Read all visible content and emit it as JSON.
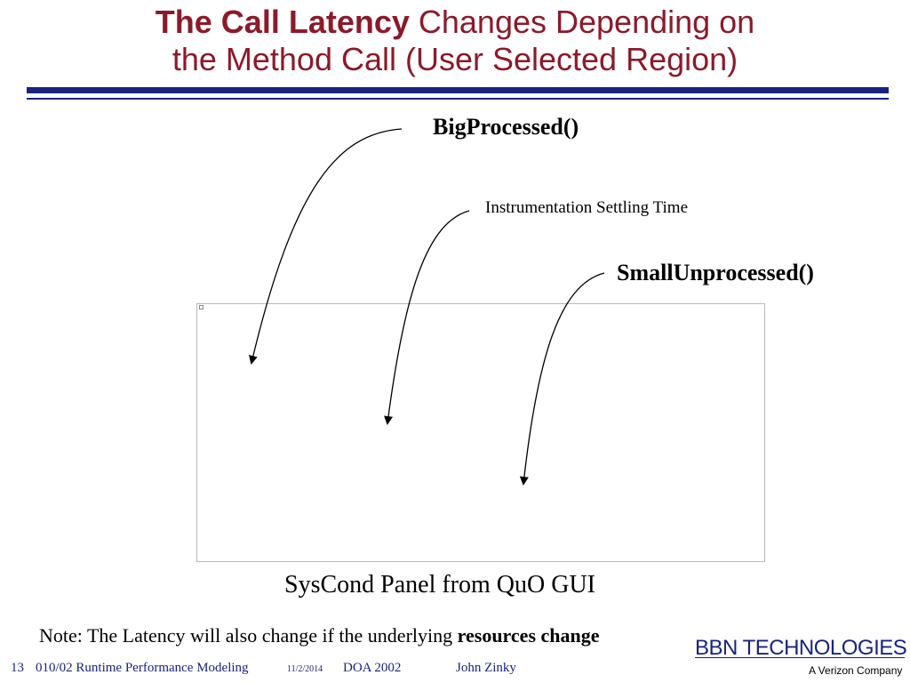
{
  "title": {
    "bold_part": "The Call Latency",
    "line1_rest": " Changes Depending on",
    "line2": "the Method Call (User Selected Region)"
  },
  "annotations": {
    "big_processed": "BigProcessed()",
    "settling": "Instrumentation Settling Time",
    "small_unprocessed": "SmallUnprocessed()"
  },
  "panel": {
    "caption": "SysCond Panel from QuO GUI"
  },
  "note": {
    "prefix": "Note: The Latency will also change if the underlying ",
    "bold": "resources change"
  },
  "footer": {
    "slide_number": "13",
    "course": "010/02  Runtime Performance Modeling",
    "date": "11/2/2014",
    "event": "DOA 2002",
    "author": "John Zinky"
  },
  "logo": {
    "main": "BBN TECHNOLOGIES",
    "sub": "A Verizon Company"
  },
  "colors": {
    "title": "#8b1a2b",
    "accent": "#1a237e"
  }
}
